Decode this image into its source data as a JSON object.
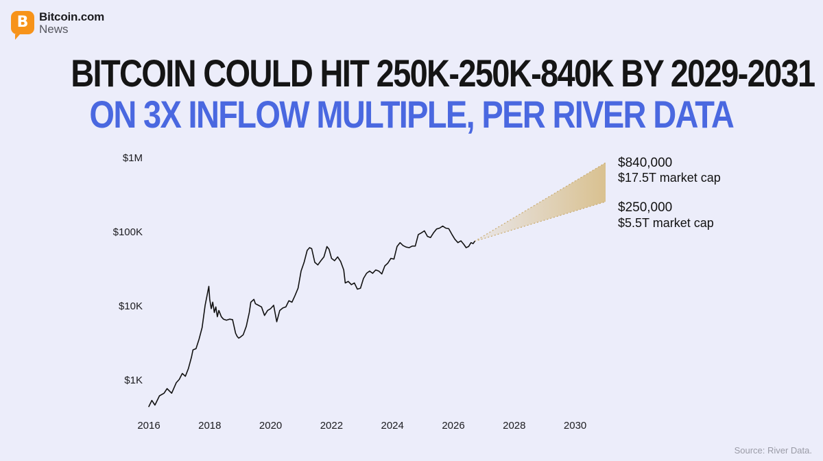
{
  "brand": {
    "name": "Bitcoin.com",
    "sub": "News",
    "icon": "bitcoin-icon",
    "badge_glyph": "B",
    "color": "#f7931a"
  },
  "headline": {
    "line1": "BITCOIN COULD HIT 250K-250K-840K BY 2029-2031",
    "line2": "ON 3X INFLOW MULTIPLE, PER RIVER DATA"
  },
  "source": "Source: River Data.",
  "chart_data": {
    "type": "line",
    "y_scale": "log",
    "ylim": [
      400,
      1000000
    ],
    "xlim": [
      2015.9,
      2031.2
    ],
    "y_ticks": [
      {
        "value": 1000,
        "label": "$1K"
      },
      {
        "value": 10000,
        "label": "$10K"
      },
      {
        "value": 100000,
        "label": "$100K"
      },
      {
        "value": 1000000,
        "label": "$1M"
      }
    ],
    "x_ticks": [
      {
        "value": 2016,
        "label": "2016"
      },
      {
        "value": 2018,
        "label": "2018"
      },
      {
        "value": 2020,
        "label": "2020"
      },
      {
        "value": 2022,
        "label": "2022"
      },
      {
        "value": 2024,
        "label": "2024"
      },
      {
        "value": 2026,
        "label": "2026"
      },
      {
        "value": 2028,
        "label": "2028"
      },
      {
        "value": 2030,
        "label": "2030"
      }
    ],
    "grid": false,
    "series": [
      {
        "color": "#111111",
        "x": [
          2016.0,
          2016.1,
          2016.2,
          2016.35,
          2016.5,
          2016.6,
          2016.75,
          2016.9,
          2017.0,
          2017.1,
          2017.2,
          2017.3,
          2017.4,
          2017.45,
          2017.55,
          2017.65,
          2017.75,
          2017.85,
          2017.92,
          2017.97,
          2018.0,
          2018.05,
          2018.1,
          2018.15,
          2018.2,
          2018.25,
          2018.3,
          2018.38,
          2018.45,
          2018.55,
          2018.65,
          2018.75,
          2018.85,
          2018.9,
          2018.95,
          2019.0,
          2019.1,
          2019.2,
          2019.3,
          2019.35,
          2019.45,
          2019.5,
          2019.6,
          2019.7,
          2019.8,
          2019.9,
          2020.0,
          2020.1,
          2020.2,
          2020.3,
          2020.4,
          2020.5,
          2020.6,
          2020.7,
          2020.8,
          2020.9,
          2021.0,
          2021.1,
          2021.2,
          2021.28,
          2021.35,
          2021.45,
          2021.55,
          2021.65,
          2021.75,
          2021.85,
          2021.92,
          2022.0,
          2022.1,
          2022.2,
          2022.3,
          2022.4,
          2022.45,
          2022.55,
          2022.65,
          2022.75,
          2022.85,
          2022.95,
          2023.05,
          2023.15,
          2023.25,
          2023.35,
          2023.45,
          2023.55,
          2023.65,
          2023.75,
          2023.85,
          2023.95,
          2024.05,
          2024.15,
          2024.25,
          2024.35,
          2024.45,
          2024.55,
          2024.65,
          2024.75,
          2024.85,
          2024.95,
          2025.05,
          2025.15,
          2025.25,
          2025.35,
          2025.45,
          2025.55,
          2025.65,
          2025.75,
          2025.85,
          2025.95,
          2026.05,
          2026.15,
          2026.25,
          2026.35,
          2026.42,
          2026.5,
          2026.58,
          2026.65,
          2026.7
        ],
        "y": [
          430,
          520,
          450,
          600,
          650,
          750,
          650,
          900,
          1000,
          1200,
          1100,
          1400,
          2000,
          2500,
          2600,
          3500,
          5000,
          10000,
          14000,
          18000,
          12000,
          9000,
          11000,
          8000,
          9500,
          7000,
          8500,
          7000,
          6500,
          6300,
          6500,
          6400,
          4200,
          3800,
          3600,
          3700,
          4000,
          5200,
          8000,
          11000,
          12000,
          10500,
          10000,
          9500,
          7300,
          8500,
          9000,
          10000,
          6000,
          8500,
          9200,
          9500,
          11500,
          11000,
          13500,
          17000,
          29000,
          38000,
          55000,
          60000,
          58000,
          38000,
          35000,
          40000,
          45000,
          62000,
          57000,
          43000,
          40000,
          45000,
          39000,
          30000,
          20000,
          21000,
          19000,
          20000,
          16500,
          17000,
          23000,
          27000,
          29000,
          27000,
          30000,
          29000,
          26500,
          34000,
          37000,
          43000,
          42000,
          62000,
          70000,
          64000,
          61000,
          60000,
          63000,
          63000,
          90000,
          95000,
          101000,
          85000,
          82000,
          95000,
          107000,
          110000,
          117000,
          110000,
          108000,
          91000,
          78000,
          70000,
          74000,
          66000,
          60000,
          62000,
          70000,
          68000,
          73000
        ]
      }
    ],
    "projection": {
      "x_start": 2026.7,
      "y_start": 73000,
      "x_end": 2031.0,
      "high": {
        "value": 840000,
        "label": "$840,000",
        "sublabel": "$17.5T market cap"
      },
      "low": {
        "value": 250000,
        "label": "$250,000",
        "sublabel": "$5.5T market cap"
      },
      "fill_color": "#d9c190"
    }
  }
}
